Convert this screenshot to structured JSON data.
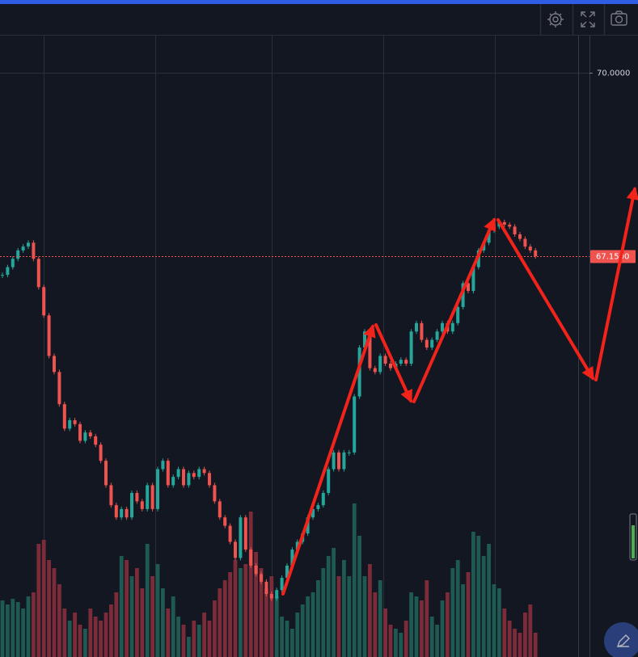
{
  "chart_data": {
    "type": "candlestick",
    "values": [
      66.86,
      66.98,
      67.11,
      67.24,
      67.3,
      67.36,
      67.11,
      66.67,
      66.23,
      65.6,
      65.35,
      64.85,
      64.47,
      64.6,
      64.54,
      64.28,
      64.41,
      64.35,
      64.22,
      63.97,
      63.59,
      63.28,
      63.09,
      63.22,
      63.09,
      63.47,
      63.34,
      63.22,
      63.59,
      63.22,
      63.84,
      63.97,
      63.59,
      63.72,
      63.84,
      63.59,
      63.78,
      63.72,
      63.84,
      63.78,
      63.59,
      63.34,
      63.09,
      62.96,
      62.71,
      62.46,
      63.09,
      62.59,
      62.34,
      62.21,
      62.09,
      61.9,
      61.83,
      61.96,
      62.15,
      62.34,
      62.59,
      62.71,
      62.84,
      63.09,
      63.22,
      63.28,
      63.47,
      63.84,
      64.1,
      63.84,
      64.1,
      64.1,
      64.97,
      65.73,
      65.98,
      65.41,
      65.35,
      65.6,
      65.48,
      65.41,
      65.48,
      65.54,
      65.48,
      65.98,
      66.11,
      65.85,
      65.73,
      65.85,
      65.98,
      66.11,
      65.98,
      66.11,
      66.36,
      66.73,
      66.61,
      66.98,
      67.24,
      67.36,
      67.55,
      67.61,
      67.68,
      67.64,
      67.61,
      67.49,
      67.42,
      67.3,
      67.24,
      67.15
    ],
    "volume": [
      70,
      65,
      72,
      68,
      60,
      75,
      80,
      140,
      145,
      120,
      110,
      90,
      60,
      45,
      55,
      40,
      35,
      60,
      50,
      45,
      55,
      65,
      80,
      125,
      120,
      100,
      110,
      85,
      140,
      100,
      115,
      85,
      60,
      75,
      50,
      40,
      25,
      45,
      40,
      55,
      45,
      70,
      85,
      95,
      105,
      120,
      110,
      115,
      180,
      130,
      110,
      85,
      100,
      75,
      50,
      45,
      35,
      55,
      65,
      75,
      80,
      95,
      110,
      125,
      135,
      100,
      120,
      100,
      190,
      150,
      100,
      115,
      80,
      95,
      60,
      40,
      35,
      30,
      45,
      80,
      75,
      70,
      95,
      50,
      40,
      70,
      80,
      110,
      120,
      90,
      105,
      155,
      150,
      125,
      140,
      90,
      85,
      60,
      45,
      35,
      30,
      55,
      65,
      30
    ],
    "up_color": "#26a69a",
    "down_color": "#ef5350",
    "volume_up_color": "#1e5a52",
    "volume_down_color": "#7b2c38",
    "ylim": [
      60.92,
      70.58
    ],
    "yticks": [
      {
        "value": 70,
        "label": "70.0000"
      }
    ],
    "last_price": {
      "value": 67.15,
      "label": "67.1500"
    },
    "grid": true
  }
}
